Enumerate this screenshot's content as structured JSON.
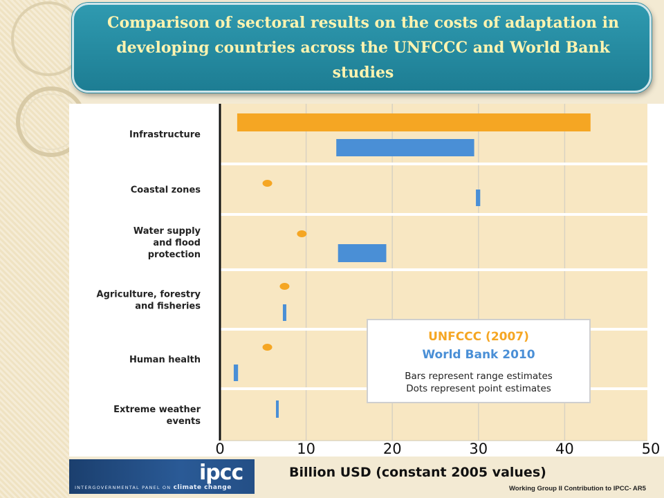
{
  "title": "Comparison of  sectoral results on the costs of adaptation in developing countries across the UNFCCC and World Bank studies",
  "footer": "Working Group II Contribution to IPCC- AR5",
  "logo": {
    "word": "ipcc",
    "subtitle_prefix": "INTERGOVERNMENTAL PANEL ON ",
    "subtitle_emph": "climate change"
  },
  "colors": {
    "unfccc": "#f5a623",
    "worldbank": "#4a8fd6",
    "banner": "#2a8ca3",
    "title_text": "#fff4b0"
  },
  "chart_data": {
    "type": "bar",
    "orientation": "horizontal",
    "title": "",
    "xlabel": "Billion USD (constant 2005 values)",
    "ylabel": "",
    "xlim": [
      0,
      50
    ],
    "xticks": [
      0,
      10,
      20,
      30,
      40,
      50
    ],
    "grid": true,
    "legend_placement": "lower-right",
    "categories": [
      [
        "Infrastructure"
      ],
      [
        "Coastal zones"
      ],
      [
        "Water supply",
        "and flood",
        "protection"
      ],
      [
        "Agriculture, forestry",
        "and fisheries"
      ],
      [
        "Human health"
      ],
      [
        "Extreme weather",
        "events"
      ]
    ],
    "series": [
      {
        "name": "UNFCCC (2007)",
        "color": "#f5a623",
        "estimates": [
          {
            "kind": "range",
            "low": 2,
            "high": 43
          },
          {
            "kind": "point",
            "value": 5.5
          },
          {
            "kind": "point",
            "value": 9.5
          },
          {
            "kind": "point",
            "value": 7.5
          },
          {
            "kind": "point",
            "value": 5.5
          },
          null
        ]
      },
      {
        "name": "World Bank 2010",
        "color": "#4a8fd6",
        "estimates": [
          {
            "kind": "range",
            "low": 13.5,
            "high": 29.5
          },
          {
            "kind": "range",
            "low": 29.7,
            "high": 30.2
          },
          {
            "kind": "range",
            "low": 13.7,
            "high": 19.3
          },
          {
            "kind": "range",
            "low": 7.3,
            "high": 7.7
          },
          {
            "kind": "range",
            "low": 1.6,
            "high": 2.1
          },
          {
            "kind": "range",
            "low": 6.5,
            "high": 6.8
          }
        ]
      }
    ],
    "legend": {
      "entries": [
        "UNFCCC (2007)",
        "World Bank 2010"
      ],
      "notes": [
        "Bars represent range estimates",
        "Dots represent point estimates"
      ]
    }
  }
}
